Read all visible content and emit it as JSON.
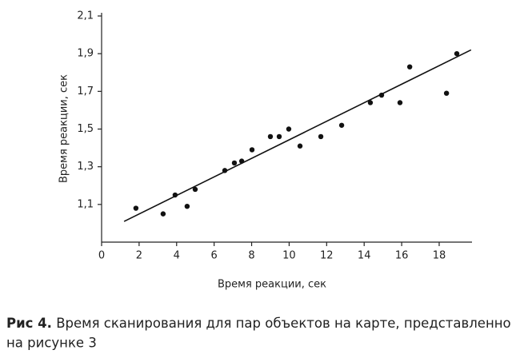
{
  "chart_data": {
    "type": "scatter",
    "xlabel": "Время реакции, сек",
    "ylabel": "Время реакции, сек",
    "xlim": [
      0,
      19.75
    ],
    "ylim": [
      0.9,
      2.1
    ],
    "xticks": [
      0,
      2,
      4,
      6,
      8,
      10,
      12,
      14,
      16,
      18
    ],
    "yticks": [
      {
        "value": 1.1,
        "label": "1,1"
      },
      {
        "value": 1.3,
        "label": "1,3"
      },
      {
        "value": 1.5,
        "label": "1,5"
      },
      {
        "value": 1.7,
        "label": "1,7"
      },
      {
        "value": 1.9,
        "label": "1,9"
      },
      {
        "value": 2.1,
        "label": "2,1"
      }
    ],
    "grid": false,
    "series": [
      {
        "type": "scatter",
        "color": "#111111",
        "x": [
          1.83,
          3.28,
          3.92,
          4.56,
          4.99,
          6.57,
          7.08,
          7.47,
          8.02,
          9.0,
          9.47,
          9.98,
          10.58,
          11.69,
          12.8,
          14.33,
          14.93,
          15.91,
          16.43,
          18.39,
          18.94
        ],
        "values": [
          1.08,
          1.05,
          1.15,
          1.09,
          1.18,
          1.28,
          1.32,
          1.33,
          1.39,
          1.46,
          1.46,
          1.5,
          1.41,
          1.46,
          1.52,
          1.64,
          1.68,
          1.64,
          1.83,
          1.69,
          1.9
        ]
      },
      {
        "type": "line",
        "color": "#111111",
        "x": [
          1.2,
          19.7
        ],
        "values": [
          1.01,
          1.92
        ]
      }
    ]
  },
  "caption": {
    "label": "Рис 4.",
    "lines": [
      "Время сканирования для пар объектов на карте, представленной",
      "на рисунке 3"
    ]
  }
}
